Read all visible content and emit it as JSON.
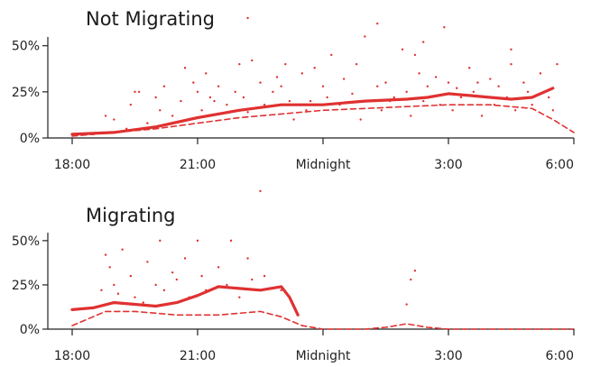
{
  "colors": {
    "series": "#e03131",
    "axis": "#222222",
    "text": "#1a1a1a"
  },
  "chart_data": [
    {
      "type": "scatter",
      "title": "Not Migrating",
      "y_tick_labels": [
        "0%",
        "25%",
        "50%"
      ],
      "y_tick_values": [
        0,
        25,
        50
      ],
      "x_tick_labels": [
        "18:00",
        "21:00",
        "Midnight",
        "3:00",
        "6:00"
      ],
      "x_tick_values": [
        18,
        21,
        24,
        27,
        30
      ],
      "xlim": [
        18,
        30
      ],
      "ylim": [
        0,
        65
      ],
      "series": [
        {
          "style": "points",
          "x": [
            18.5,
            18.8,
            19.0,
            19.3,
            19.4,
            19.5,
            19.8,
            20.0,
            20.1,
            20.2,
            20.4,
            20.6,
            20.8,
            20.9,
            21.0,
            21.1,
            21.2,
            21.4,
            21.5,
            21.7,
            21.9,
            22.0,
            22.1,
            22.2,
            22.3,
            22.5,
            22.6,
            22.8,
            23.0,
            23.1,
            23.2,
            23.3,
            23.5,
            23.6,
            23.8,
            24.0,
            24.1,
            24.2,
            24.4,
            24.5,
            24.7,
            24.9,
            25.0,
            25.1,
            25.3,
            25.4,
            25.5,
            25.7,
            25.9,
            26.0,
            26.1,
            26.3,
            26.4,
            26.5,
            26.7,
            26.8,
            27.0,
            27.1,
            27.2,
            27.3,
            27.5,
            27.6,
            27.8,
            28.0,
            28.1,
            28.2,
            28.4,
            28.5,
            28.6,
            28.8,
            28.9,
            29.0,
            29.2,
            29.4,
            29.6,
            22.2,
            25.3,
            26.4,
            26.9,
            28.5,
            24.8,
            21.3,
            20.7,
            23.7,
            26.2,
            27.7,
            29.5,
            19.6,
            22.9,
            25.6
          ],
          "y": [
            2,
            12,
            10,
            5,
            18,
            25,
            8,
            22,
            15,
            28,
            12,
            20,
            10,
            30,
            25,
            15,
            35,
            20,
            28,
            18,
            25,
            40,
            22,
            14,
            42,
            30,
            18,
            25,
            28,
            40,
            20,
            10,
            35,
            15,
            38,
            28,
            22,
            45,
            18,
            32,
            24,
            10,
            55,
            20,
            28,
            15,
            30,
            22,
            48,
            25,
            12,
            35,
            20,
            28,
            33,
            18,
            30,
            15,
            27,
            22,
            38,
            25,
            12,
            32,
            18,
            28,
            22,
            40,
            15,
            30,
            25,
            18,
            35,
            22,
            40,
            65,
            62,
            52,
            60,
            48,
            40,
            22,
            38,
            20,
            45,
            30,
            15,
            25,
            33,
            20
          ]
        },
        {
          "style": "solid",
          "x": [
            18,
            19,
            20,
            21,
            22,
            23,
            24,
            25,
            26,
            26.5,
            27,
            27.5,
            28,
            28.5,
            29,
            29.5
          ],
          "y": [
            2,
            3,
            6,
            11,
            15,
            18,
            18,
            20,
            21,
            22,
            24,
            23,
            22,
            21,
            22,
            27
          ]
        },
        {
          "style": "dashed",
          "x": [
            18,
            19,
            20,
            21,
            22,
            23,
            24,
            25,
            26,
            27,
            28,
            29,
            29.5,
            30
          ],
          "y": [
            1,
            3,
            5,
            8,
            11,
            13,
            15,
            16,
            17,
            18,
            18,
            16,
            10,
            3
          ]
        }
      ]
    },
    {
      "type": "scatter",
      "title": "Migrating",
      "y_tick_labels": [
        "0%",
        "25%",
        "50%"
      ],
      "y_tick_values": [
        0,
        25,
        50
      ],
      "x_tick_labels": [
        "18:00",
        "21:00",
        "Midnight",
        "3:00",
        "6:00"
      ],
      "x_tick_values": [
        18,
        21,
        24,
        27,
        30
      ],
      "xlim": [
        18,
        30
      ],
      "ylim": [
        0,
        80
      ],
      "series": [
        {
          "style": "points",
          "x": [
            18.7,
            18.8,
            18.9,
            19.0,
            19.1,
            19.2,
            19.4,
            19.5,
            19.7,
            19.8,
            20.0,
            20.1,
            20.2,
            20.4,
            20.5,
            20.7,
            20.8,
            21.0,
            21.1,
            21.2,
            21.5,
            21.7,
            21.8,
            22.0,
            22.2,
            22.3,
            22.5,
            22.6,
            23.0,
            26.0,
            26.1,
            26.2
          ],
          "y": [
            22,
            42,
            35,
            25,
            20,
            45,
            30,
            18,
            15,
            38,
            25,
            50,
            22,
            32,
            28,
            40,
            18,
            50,
            30,
            22,
            35,
            25,
            50,
            18,
            40,
            28,
            78,
            30,
            22,
            14,
            28,
            33
          ]
        },
        {
          "style": "solid",
          "x": [
            18,
            18.5,
            19,
            19.5,
            20,
            20.5,
            21,
            21.5,
            22,
            22.5,
            23,
            23.2,
            23.4
          ],
          "y": [
            11,
            12,
            15,
            14,
            13,
            15,
            19,
            24,
            23,
            22,
            24,
            18,
            8
          ]
        },
        {
          "style": "dashed",
          "x": [
            18,
            18.8,
            19.5,
            20.5,
            21.5,
            22.5,
            23,
            23.5,
            24,
            24.5,
            25,
            25.5,
            26,
            26.5,
            27,
            28,
            29,
            30
          ],
          "y": [
            2,
            10,
            10,
            8,
            8,
            10,
            7,
            2,
            0,
            0,
            0,
            1,
            3,
            1,
            0,
            0,
            0,
            0
          ]
        }
      ]
    }
  ]
}
